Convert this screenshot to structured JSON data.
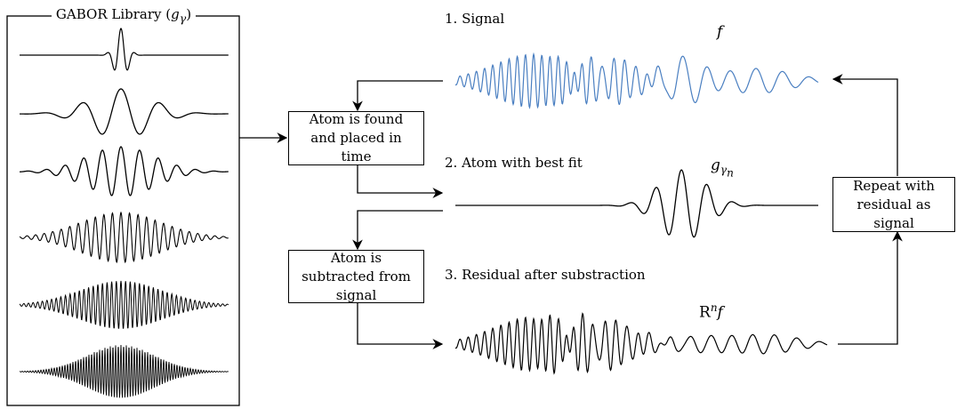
{
  "library": {
    "title_text": "GABOR Library (",
    "title_symbol": "g",
    "title_sub": "γ",
    "title_close": ")"
  },
  "boxes": {
    "find": "Atom is found and placed in time",
    "subtract": "Atom is subtracted from signal",
    "repeat": "Repeat with residual as signal"
  },
  "labels": {
    "signal": "1. Signal",
    "atom": "2. Atom with best fit",
    "residual": "3. Residual after substraction"
  },
  "math": {
    "f": "f",
    "g": "g",
    "g_sub": "γ",
    "g_subsub": "n",
    "r": "R",
    "r_sup": "n",
    "r_f": "f"
  },
  "colors": {
    "signal": "#4a7fc1",
    "ink": "#000000"
  }
}
